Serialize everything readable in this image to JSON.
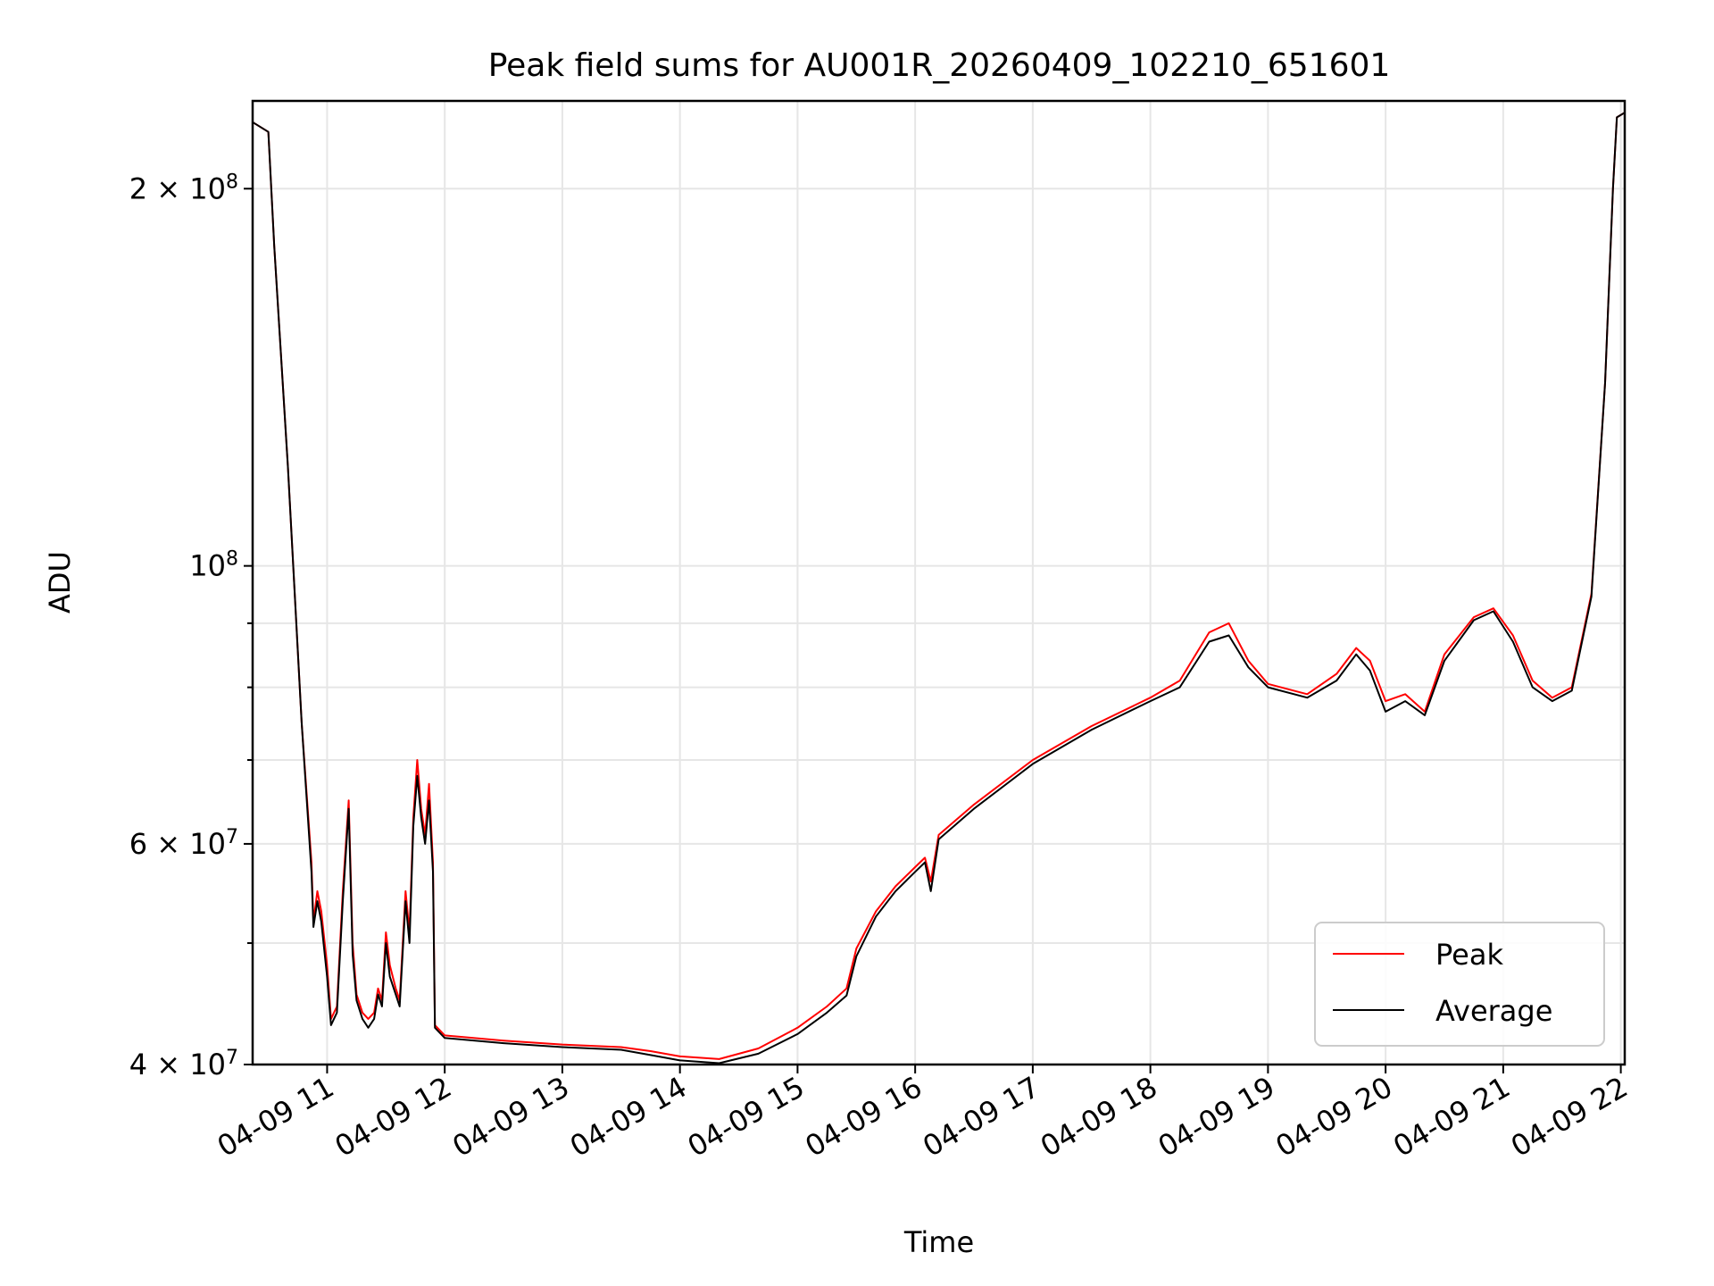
{
  "chart_data": {
    "type": "line",
    "title": "Peak field sums for AU001R_20260409_102210_651601",
    "xlabel": "Time",
    "ylabel": "ADU",
    "yscale": "log",
    "xlim": [
      "04-09 10:22",
      "04-09 22:02"
    ],
    "ylim": [
      40000000,
      235000000
    ],
    "grid": true,
    "legend_position": "lower-right",
    "x_ticks": [
      {
        "hour": 11,
        "label": "04-09 11"
      },
      {
        "hour": 12,
        "label": "04-09 12"
      },
      {
        "hour": 13,
        "label": "04-09 13"
      },
      {
        "hour": 14,
        "label": "04-09 14"
      },
      {
        "hour": 15,
        "label": "04-09 15"
      },
      {
        "hour": 16,
        "label": "04-09 16"
      },
      {
        "hour": 17,
        "label": "04-09 17"
      },
      {
        "hour": 18,
        "label": "04-09 18"
      },
      {
        "hour": 19,
        "label": "04-09 19"
      },
      {
        "hour": 20,
        "label": "04-09 20"
      },
      {
        "hour": 21,
        "label": "04-09 21"
      },
      {
        "hour": 22,
        "label": "04-09 22"
      }
    ],
    "y_major_ticks": [
      {
        "value": 100000000,
        "label": "10^8",
        "mantissa": "",
        "base": "10",
        "exp": "8"
      },
      {
        "value": 200000000,
        "label": "2×10^8",
        "mantissa": "2 × ",
        "base": "10",
        "exp": "8"
      },
      {
        "value": 60000000,
        "label": "6×10^7",
        "mantissa": "6 × ",
        "base": "10",
        "exp": "7"
      },
      {
        "value": 40000000,
        "label": "4×10^7",
        "mantissa": "4 × ",
        "base": "10",
        "exp": "7"
      }
    ],
    "y_minor_ticks": [
      50000000,
      70000000,
      80000000,
      90000000
    ],
    "series": [
      {
        "name": "Peak",
        "color": "#ff0000",
        "points": [
          [
            "04-09 10:22",
            226000000
          ],
          [
            "04-09 10:30",
            222000000
          ],
          [
            "04-09 10:33",
            180000000
          ],
          [
            "04-09 10:40",
            120000000
          ],
          [
            "04-09 10:47",
            75000000
          ],
          [
            "04-09 10:52",
            58000000
          ],
          [
            "04-09 10:53",
            52000000
          ],
          [
            "04-09 10:55",
            55000000
          ],
          [
            "04-09 10:57",
            53000000
          ],
          [
            "04-09 11:00",
            48000000
          ],
          [
            "04-09 11:02",
            43500000
          ],
          [
            "04-09 11:05",
            44500000
          ],
          [
            "04-09 11:08",
            55000000
          ],
          [
            "04-09 11:11",
            65000000
          ],
          [
            "04-09 11:13",
            50000000
          ],
          [
            "04-09 11:15",
            45500000
          ],
          [
            "04-09 11:18",
            44000000
          ],
          [
            "04-09 11:21",
            43500000
          ],
          [
            "04-09 11:24",
            44000000
          ],
          [
            "04-09 11:26",
            46000000
          ],
          [
            "04-09 11:28",
            45000000
          ],
          [
            "04-09 11:30",
            51000000
          ],
          [
            "04-09 11:32",
            48000000
          ],
          [
            "04-09 11:35",
            46000000
          ],
          [
            "04-09 11:37",
            45000000
          ],
          [
            "04-09 11:40",
            55000000
          ],
          [
            "04-09 11:42",
            51000000
          ],
          [
            "04-09 11:44",
            63000000
          ],
          [
            "04-09 11:46",
            70000000
          ],
          [
            "04-09 11:48",
            64000000
          ],
          [
            "04-09 11:50",
            61000000
          ],
          [
            "04-09 11:52",
            67000000
          ],
          [
            "04-09 11:54",
            58000000
          ],
          [
            "04-09 11:55",
            43000000
          ],
          [
            "04-09 12:00",
            42200000
          ],
          [
            "04-09 12:30",
            41800000
          ],
          [
            "04-09 13:00",
            41500000
          ],
          [
            "04-09 13:30",
            41300000
          ],
          [
            "04-09 13:45",
            41000000
          ],
          [
            "04-09 14:00",
            40600000
          ],
          [
            "04-09 14:20",
            40400000
          ],
          [
            "04-09 14:40",
            41200000
          ],
          [
            "04-09 15:00",
            42800000
          ],
          [
            "04-09 15:15",
            44500000
          ],
          [
            "04-09 15:25",
            46000000
          ],
          [
            "04-09 15:30",
            49500000
          ],
          [
            "04-09 15:40",
            53000000
          ],
          [
            "04-09 15:50",
            55500000
          ],
          [
            "04-09 16:00",
            57500000
          ],
          [
            "04-09 16:05",
            58500000
          ],
          [
            "04-09 16:08",
            56000000
          ],
          [
            "04-09 16:12",
            61000000
          ],
          [
            "04-09 16:30",
            64500000
          ],
          [
            "04-09 17:00",
            70000000
          ],
          [
            "04-09 17:30",
            74500000
          ],
          [
            "04-09 18:00",
            78500000
          ],
          [
            "04-09 18:15",
            81000000
          ],
          [
            "04-09 18:30",
            88500000
          ],
          [
            "04-09 18:40",
            90000000
          ],
          [
            "04-09 18:50",
            84000000
          ],
          [
            "04-09 19:00",
            80500000
          ],
          [
            "04-09 19:20",
            79000000
          ],
          [
            "04-09 19:35",
            82000000
          ],
          [
            "04-09 19:45",
            86000000
          ],
          [
            "04-09 19:52",
            84000000
          ],
          [
            "04-09 20:00",
            78000000
          ],
          [
            "04-09 20:10",
            79000000
          ],
          [
            "04-09 20:20",
            76500000
          ],
          [
            "04-09 20:30",
            85000000
          ],
          [
            "04-09 20:45",
            91000000
          ],
          [
            "04-09 20:55",
            92500000
          ],
          [
            "04-09 21:05",
            88000000
          ],
          [
            "04-09 21:15",
            81000000
          ],
          [
            "04-09 21:25",
            78500000
          ],
          [
            "04-09 21:35",
            80000000
          ],
          [
            "04-09 21:45",
            95000000
          ],
          [
            "04-09 21:52",
            140000000
          ],
          [
            "04-09 21:56",
            200000000
          ],
          [
            "04-09 21:58",
            228000000
          ],
          [
            "04-09 22:02",
            230000000
          ]
        ]
      },
      {
        "name": "Average",
        "color": "#000000",
        "points": [
          [
            "04-09 10:22",
            226000000
          ],
          [
            "04-09 10:30",
            222000000
          ],
          [
            "04-09 10:33",
            180000000
          ],
          [
            "04-09 10:40",
            120000000
          ],
          [
            "04-09 10:47",
            75000000
          ],
          [
            "04-09 10:52",
            57000000
          ],
          [
            "04-09 10:53",
            51500000
          ],
          [
            "04-09 10:55",
            54000000
          ],
          [
            "04-09 10:57",
            52000000
          ],
          [
            "04-09 11:00",
            47000000
          ],
          [
            "04-09 11:02",
            43000000
          ],
          [
            "04-09 11:05",
            44000000
          ],
          [
            "04-09 11:08",
            54000000
          ],
          [
            "04-09 11:11",
            64000000
          ],
          [
            "04-09 11:13",
            49000000
          ],
          [
            "04-09 11:15",
            45000000
          ],
          [
            "04-09 11:18",
            43500000
          ],
          [
            "04-09 11:21",
            42800000
          ],
          [
            "04-09 11:24",
            43500000
          ],
          [
            "04-09 11:26",
            45500000
          ],
          [
            "04-09 11:28",
            44500000
          ],
          [
            "04-09 11:30",
            50000000
          ],
          [
            "04-09 11:32",
            47000000
          ],
          [
            "04-09 11:35",
            45500000
          ],
          [
            "04-09 11:37",
            44500000
          ],
          [
            "04-09 11:40",
            54000000
          ],
          [
            "04-09 11:42",
            50000000
          ],
          [
            "04-09 11:44",
            62000000
          ],
          [
            "04-09 11:46",
            68000000
          ],
          [
            "04-09 11:48",
            63000000
          ],
          [
            "04-09 11:50",
            60000000
          ],
          [
            "04-09 11:52",
            65000000
          ],
          [
            "04-09 11:54",
            57000000
          ],
          [
            "04-09 11:55",
            42800000
          ],
          [
            "04-09 12:00",
            42000000
          ],
          [
            "04-09 12:30",
            41600000
          ],
          [
            "04-09 13:00",
            41300000
          ],
          [
            "04-09 13:30",
            41100000
          ],
          [
            "04-09 13:45",
            40700000
          ],
          [
            "04-09 14:00",
            40300000
          ],
          [
            "04-09 14:20",
            40100000
          ],
          [
            "04-09 14:40",
            40800000
          ],
          [
            "04-09 15:00",
            42300000
          ],
          [
            "04-09 15:15",
            44000000
          ],
          [
            "04-09 15:25",
            45400000
          ],
          [
            "04-09 15:30",
            48800000
          ],
          [
            "04-09 15:40",
            52500000
          ],
          [
            "04-09 15:50",
            55000000
          ],
          [
            "04-09 16:00",
            57000000
          ],
          [
            "04-09 16:05",
            58000000
          ],
          [
            "04-09 16:08",
            55000000
          ],
          [
            "04-09 16:12",
            60500000
          ],
          [
            "04-09 16:30",
            64000000
          ],
          [
            "04-09 17:00",
            69500000
          ],
          [
            "04-09 17:30",
            74000000
          ],
          [
            "04-09 18:00",
            78000000
          ],
          [
            "04-09 18:15",
            80000000
          ],
          [
            "04-09 18:30",
            87000000
          ],
          [
            "04-09 18:40",
            88000000
          ],
          [
            "04-09 18:50",
            83000000
          ],
          [
            "04-09 19:00",
            80000000
          ],
          [
            "04-09 19:20",
            78500000
          ],
          [
            "04-09 19:35",
            81000000
          ],
          [
            "04-09 19:45",
            85000000
          ],
          [
            "04-09 19:52",
            82500000
          ],
          [
            "04-09 20:00",
            76500000
          ],
          [
            "04-09 20:10",
            78000000
          ],
          [
            "04-09 20:20",
            76000000
          ],
          [
            "04-09 20:30",
            84000000
          ],
          [
            "04-09 20:45",
            90500000
          ],
          [
            "04-09 20:55",
            92000000
          ],
          [
            "04-09 21:05",
            87000000
          ],
          [
            "04-09 21:15",
            80000000
          ],
          [
            "04-09 21:25",
            78000000
          ],
          [
            "04-09 21:35",
            79500000
          ],
          [
            "04-09 21:45",
            94500000
          ],
          [
            "04-09 21:52",
            140000000
          ],
          [
            "04-09 21:56",
            200000000
          ],
          [
            "04-09 21:58",
            228000000
          ],
          [
            "04-09 22:02",
            230000000
          ]
        ]
      }
    ]
  }
}
